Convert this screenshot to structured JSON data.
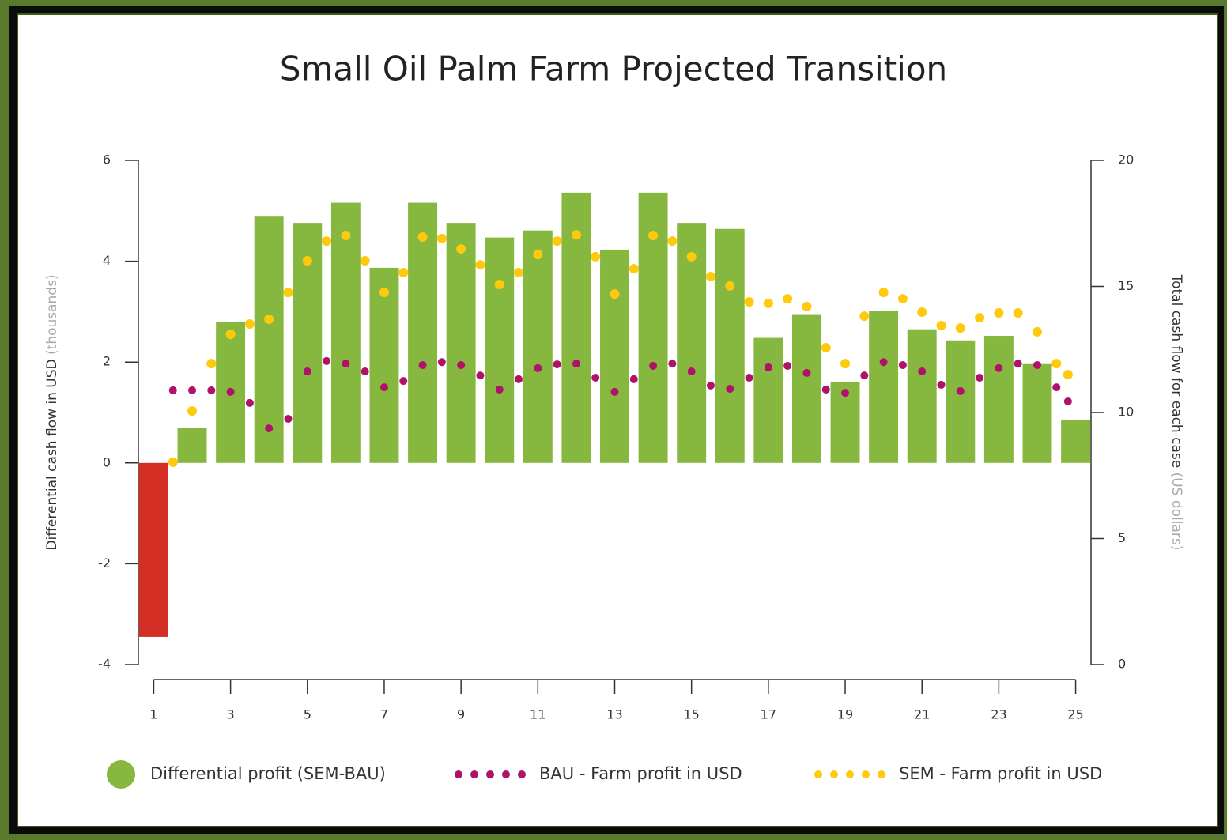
{
  "chart_data": {
    "type": "bar",
    "title": "Small Oil Palm Farm Projected Transition",
    "y_label": "Differential cash flow in USD",
    "y_label_unit": "(thousands)",
    "y2_label": "Total cash flow for each case",
    "y2_label_unit": "(US dollars)",
    "xlim": [
      0.6,
      25.4
    ],
    "xticks": [
      1,
      3,
      5,
      7,
      9,
      11,
      13,
      15,
      17,
      19,
      21,
      23,
      25
    ],
    "ylim": [
      -4,
      6
    ],
    "yticks": [
      -4,
      -2,
      0,
      2,
      4,
      6
    ],
    "y2lim": [
      0,
      20
    ],
    "y2ticks": [
      0,
      5,
      10,
      15,
      20
    ],
    "negative_color": "#d42e25",
    "series": [
      {
        "name": "Differential profit (SEM-BAU)",
        "type": "bar",
        "color": "#86b83f",
        "x": [
          1,
          2,
          3,
          4,
          5,
          6,
          7,
          8,
          9,
          10,
          11,
          12,
          13,
          14,
          15,
          16,
          17,
          18,
          19,
          20,
          21,
          22,
          23,
          24,
          25
        ],
        "values": [
          -3.45,
          0.7,
          2.79,
          4.9,
          4.76,
          5.16,
          3.87,
          5.16,
          4.76,
          4.47,
          4.61,
          5.36,
          4.23,
          5.36,
          4.76,
          4.64,
          2.48,
          2.95,
          1.61,
          3.01,
          2.65,
          2.43,
          2.52,
          1.96,
          0.86
        ]
      },
      {
        "name": "BAU - Farm profit in USD",
        "type": "scatter",
        "axis": "y2",
        "color": "#b0126a",
        "x": [
          1.5,
          2,
          2.5,
          3,
          3.5,
          4,
          4.5,
          5,
          5.5,
          6,
          6.5,
          7,
          7.5,
          8,
          8.5,
          9,
          9.5,
          10,
          10.5,
          11,
          11.5,
          12,
          12.5,
          13,
          13.5,
          14,
          14.5,
          15,
          15.5,
          16,
          16.5,
          17,
          17.5,
          18,
          18.5,
          19,
          19.5,
          20,
          20.5,
          21,
          21.5,
          22,
          22.5,
          23,
          23.5,
          24,
          24.5,
          24.8
        ],
        "values": [
          10.88,
          10.88,
          10.88,
          10.82,
          10.38,
          9.37,
          9.75,
          11.63,
          12.04,
          11.94,
          11.63,
          11.0,
          11.25,
          11.88,
          12.0,
          11.88,
          11.47,
          10.91,
          11.32,
          11.76,
          11.91,
          11.94,
          11.38,
          10.82,
          11.32,
          11.85,
          11.94,
          11.63,
          11.07,
          10.94,
          11.38,
          11.79,
          11.85,
          11.57,
          10.91,
          10.78,
          11.47,
          12.0,
          11.88,
          11.63,
          11.1,
          10.85,
          11.38,
          11.76,
          11.94,
          11.88,
          11.0,
          10.44
        ]
      },
      {
        "name": "SEM - Farm profit in USD",
        "type": "scatter",
        "axis": "y2",
        "color": "#ffc90e",
        "x": [
          1.5,
          2,
          2.5,
          3,
          3.5,
          4,
          4.5,
          5,
          5.5,
          6,
          6.5,
          7,
          7.5,
          8,
          8.5,
          9,
          9.5,
          10,
          10.5,
          11,
          11.5,
          12,
          12.5,
          13,
          13.5,
          14,
          14.5,
          15,
          15.5,
          16,
          16.5,
          17,
          17.5,
          18,
          18.5,
          19,
          19.5,
          20,
          20.5,
          21,
          21.5,
          22,
          22.5,
          23,
          23.5,
          24,
          24.5,
          24.8
        ],
        "values": [
          8.03,
          10.06,
          11.94,
          13.1,
          13.51,
          13.7,
          14.76,
          16.02,
          16.8,
          17.02,
          16.02,
          14.76,
          15.55,
          16.96,
          16.9,
          16.49,
          15.86,
          15.08,
          15.55,
          16.27,
          16.8,
          17.05,
          16.18,
          14.7,
          15.7,
          17.02,
          16.8,
          16.18,
          15.39,
          15.02,
          14.39,
          14.33,
          14.51,
          14.2,
          12.57,
          11.94,
          13.82,
          14.76,
          14.51,
          13.98,
          13.45,
          13.35,
          13.76,
          13.95,
          13.95,
          13.2,
          11.94,
          11.5
        ]
      }
    ]
  }
}
